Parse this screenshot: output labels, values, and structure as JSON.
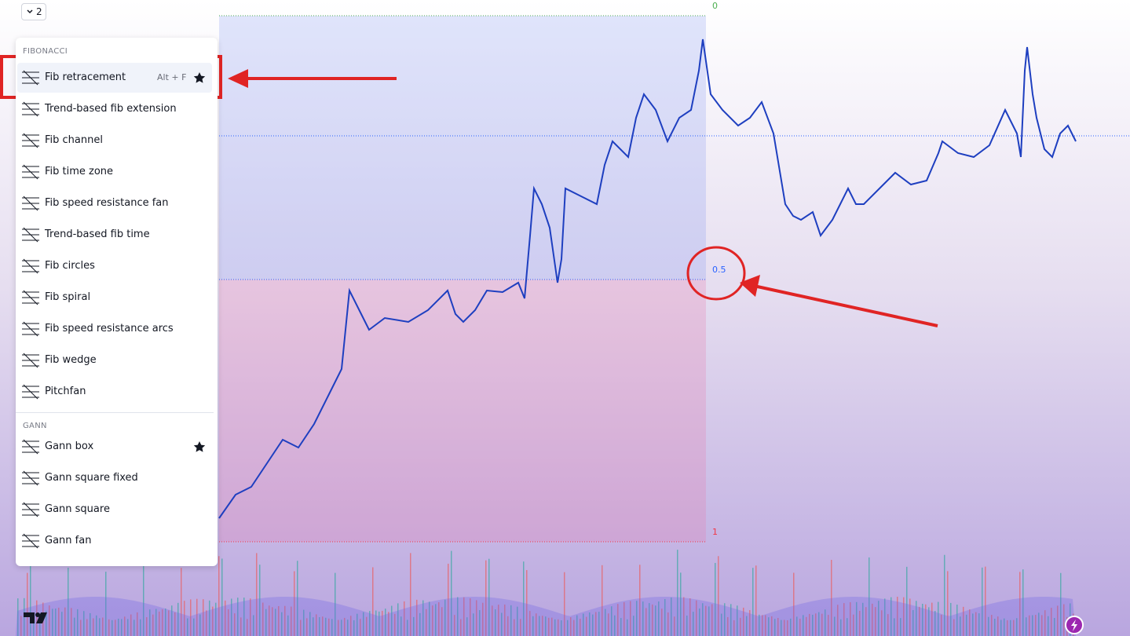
{
  "toolbar": {
    "layout_count": "2"
  },
  "menu": {
    "sections": [
      {
        "title": "FIBONACCI",
        "items": [
          {
            "label": "Fib retracement",
            "shortcut": "Alt + F",
            "favorite": true,
            "selected": true
          },
          {
            "label": "Trend-based fib extension"
          },
          {
            "label": "Fib channel"
          },
          {
            "label": "Fib time zone"
          },
          {
            "label": "Fib speed resistance fan"
          },
          {
            "label": "Trend-based fib time"
          },
          {
            "label": "Fib circles"
          },
          {
            "label": "Fib spiral"
          },
          {
            "label": "Fib speed resistance arcs"
          },
          {
            "label": "Fib wedge"
          },
          {
            "label": "Pitchfan"
          }
        ]
      },
      {
        "title": "GANN",
        "items": [
          {
            "label": "Gann box",
            "favorite": true
          },
          {
            "label": "Gann square fixed"
          },
          {
            "label": "Gann square"
          },
          {
            "label": "Gann fan"
          }
        ]
      }
    ]
  },
  "chart": {
    "fib_levels": [
      {
        "label": "0",
        "color": "#4caf50"
      },
      {
        "label": "0.5",
        "color": "#2962ff"
      },
      {
        "label": "1",
        "color": "#f23645"
      }
    ]
  }
}
